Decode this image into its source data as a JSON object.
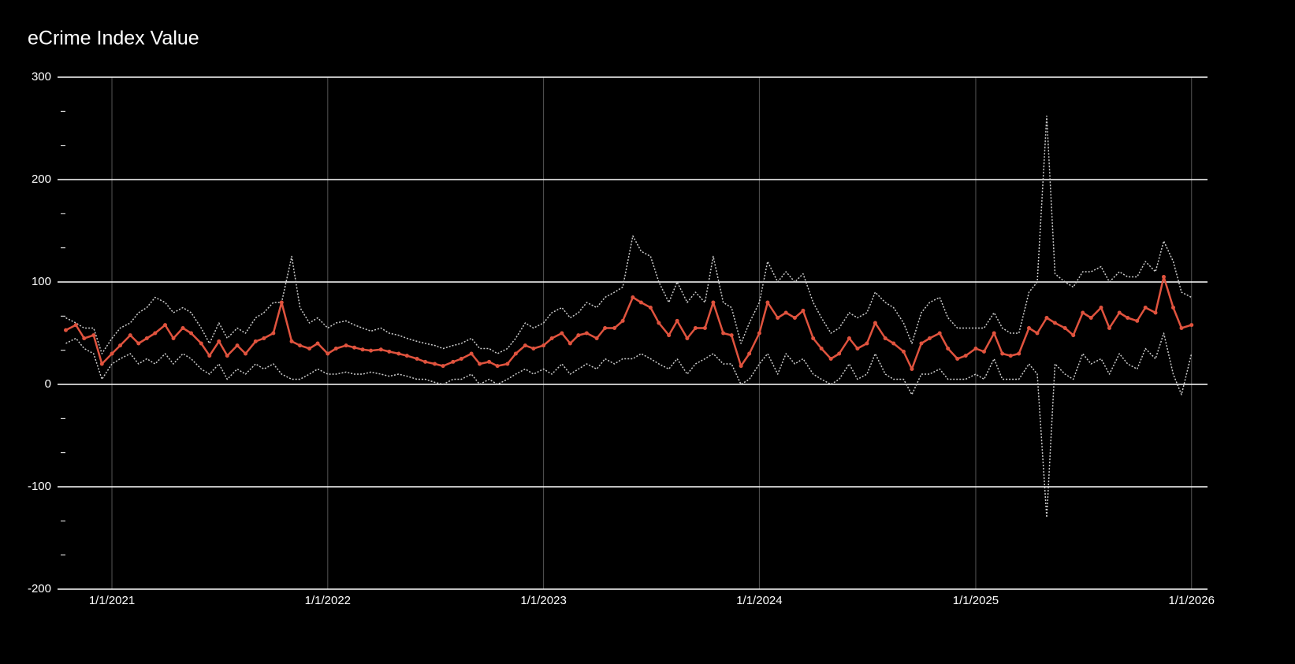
{
  "chart_data": {
    "type": "line",
    "title": "eCrime Index Value",
    "x": [
      "10/15/2020",
      "11/1/2020",
      "11/15/2020",
      "12/1/2020",
      "12/15/2020",
      "1/1/2021",
      "1/15/2021",
      "2/1/2021",
      "2/15/2021",
      "3/1/2021",
      "3/15/2021",
      "4/1/2021",
      "4/15/2021",
      "5/1/2021",
      "5/15/2021",
      "6/1/2021",
      "6/15/2021",
      "7/1/2021",
      "7/15/2021",
      "8/1/2021",
      "8/15/2021",
      "9/1/2021",
      "9/15/2021",
      "10/1/2021",
      "10/15/2021",
      "11/1/2021",
      "11/15/2021",
      "12/1/2021",
      "12/15/2021",
      "1/1/2022",
      "1/15/2022",
      "2/1/2022",
      "2/15/2022",
      "3/1/2022",
      "3/15/2022",
      "4/1/2022",
      "4/15/2022",
      "5/1/2022",
      "5/15/2022",
      "6/1/2022",
      "6/15/2022",
      "7/1/2022",
      "7/15/2022",
      "8/1/2022",
      "8/15/2022",
      "9/1/2022",
      "9/15/2022",
      "10/1/2022",
      "10/15/2022",
      "11/1/2022",
      "11/15/2022",
      "12/1/2022",
      "12/15/2022",
      "1/1/2023",
      "1/15/2023",
      "2/1/2023",
      "2/15/2023",
      "3/1/2023",
      "3/15/2023",
      "4/1/2023",
      "4/15/2023",
      "5/1/2023",
      "5/15/2023",
      "6/1/2023",
      "6/15/2023",
      "7/1/2023",
      "7/15/2023",
      "8/1/2023",
      "8/15/2023",
      "9/1/2023",
      "9/15/2023",
      "10/1/2023",
      "10/15/2023",
      "11/1/2023",
      "11/15/2023",
      "12/1/2023",
      "12/15/2023",
      "1/1/2024",
      "1/15/2024",
      "2/1/2024",
      "2/15/2024",
      "3/1/2024",
      "3/15/2024",
      "4/1/2024",
      "4/15/2024",
      "5/1/2024",
      "5/15/2024",
      "6/1/2024",
      "6/15/2024",
      "7/1/2024",
      "7/15/2024",
      "8/1/2024",
      "8/15/2024",
      "9/1/2024",
      "9/15/2024",
      "10/1/2024",
      "10/15/2024",
      "11/1/2024",
      "11/15/2024",
      "12/1/2024",
      "12/15/2024",
      "1/1/2025",
      "1/15/2025",
      "2/1/2025",
      "2/15/2025",
      "3/1/2025",
      "3/15/2025",
      "4/1/2025",
      "4/15/2025",
      "5/1/2025",
      "5/15/2025",
      "6/1/2025",
      "6/15/2025",
      "7/1/2025",
      "7/15/2025",
      "8/1/2025",
      "8/15/2025",
      "9/1/2025",
      "9/15/2025",
      "10/1/2025",
      "10/15/2025",
      "11/1/2025",
      "11/15/2025",
      "12/1/2025",
      "12/15/2025",
      "1/1/2026"
    ],
    "series": [
      {
        "color": "#cccccc",
        "line_style": "dotted",
        "markers": false,
        "values": [
          65,
          60,
          55,
          55,
          30,
          45,
          55,
          60,
          70,
          75,
          85,
          80,
          70,
          75,
          70,
          55,
          40,
          60,
          45,
          55,
          50,
          65,
          70,
          80,
          80,
          125,
          75,
          60,
          65,
          55,
          60,
          62,
          58,
          55,
          52,
          55,
          50,
          48,
          45,
          42,
          40,
          38,
          35,
          38,
          40,
          45,
          35,
          35,
          30,
          35,
          45,
          60,
          55,
          60,
          70,
          75,
          65,
          70,
          80,
          75,
          85,
          90,
          95,
          145,
          130,
          125,
          100,
          80,
          100,
          80,
          90,
          80,
          125,
          80,
          75,
          40,
          60,
          80,
          120,
          100,
          110,
          100,
          108,
          80,
          65,
          50,
          55,
          70,
          65,
          70,
          90,
          80,
          75,
          60,
          40,
          70,
          80,
          85,
          65,
          55,
          55,
          55,
          55,
          70,
          55,
          50,
          50,
          90,
          100,
          262,
          108,
          100,
          95,
          110,
          110,
          115,
          100,
          110,
          105,
          105,
          120,
          110,
          140,
          120,
          90,
          85
        ]
      },
      {
        "color": "#cccccc",
        "line_style": "dotted",
        "markers": false,
        "values": [
          40,
          45,
          35,
          30,
          5,
          20,
          25,
          30,
          20,
          25,
          20,
          30,
          20,
          30,
          25,
          15,
          10,
          20,
          5,
          15,
          10,
          20,
          15,
          20,
          10,
          5,
          5,
          10,
          15,
          10,
          10,
          12,
          10,
          10,
          12,
          10,
          8,
          10,
          8,
          5,
          5,
          2,
          0,
          5,
          5,
          10,
          0,
          5,
          0,
          5,
          10,
          15,
          10,
          15,
          10,
          20,
          10,
          15,
          20,
          15,
          25,
          20,
          25,
          25,
          30,
          25,
          20,
          15,
          25,
          10,
          20,
          25,
          30,
          20,
          20,
          0,
          5,
          20,
          30,
          10,
          30,
          20,
          25,
          10,
          5,
          0,
          5,
          20,
          5,
          10,
          30,
          10,
          5,
          5,
          -10,
          10,
          10,
          15,
          5,
          5,
          5,
          10,
          5,
          25,
          5,
          5,
          5,
          20,
          10,
          -130,
          20,
          10,
          5,
          30,
          20,
          25,
          10,
          30,
          20,
          15,
          35,
          25,
          50,
          10,
          -10,
          30
        ]
      },
      {
        "color": "#e0533e",
        "line_style": "solid",
        "markers": true,
        "values": [
          53,
          58,
          45,
          48,
          20,
          30,
          38,
          48,
          40,
          45,
          50,
          58,
          45,
          55,
          50,
          40,
          28,
          42,
          28,
          38,
          30,
          42,
          45,
          50,
          80,
          42,
          38,
          35,
          40,
          30,
          35,
          38,
          36,
          34,
          33,
          34,
          32,
          30,
          28,
          25,
          22,
          20,
          18,
          22,
          25,
          30,
          20,
          22,
          18,
          20,
          30,
          38,
          35,
          38,
          45,
          50,
          40,
          48,
          50,
          45,
          55,
          55,
          62,
          85,
          80,
          75,
          60,
          48,
          62,
          45,
          55,
          55,
          80,
          50,
          48,
          18,
          30,
          50,
          80,
          65,
          70,
          65,
          72,
          45,
          35,
          25,
          30,
          45,
          35,
          40,
          60,
          45,
          40,
          32,
          15,
          40,
          45,
          50,
          35,
          25,
          28,
          35,
          32,
          50,
          30,
          28,
          30,
          55,
          50,
          65,
          60,
          55,
          48,
          70,
          65,
          75,
          55,
          70,
          65,
          62,
          75,
          70,
          105,
          75,
          55,
          58
        ]
      }
    ],
    "xlim": [
      "10/1/2020",
      "1/28/2026"
    ],
    "xticks": [
      "1/1/2021",
      "1/1/2022",
      "1/1/2023",
      "1/1/2024",
      "1/1/2025",
      "1/1/2026"
    ],
    "ylim": [
      -200,
      300
    ],
    "yticks": [
      -200,
      -100,
      0,
      100,
      200,
      300
    ],
    "minor_ticks_per_interval": 2,
    "grid": true
  }
}
